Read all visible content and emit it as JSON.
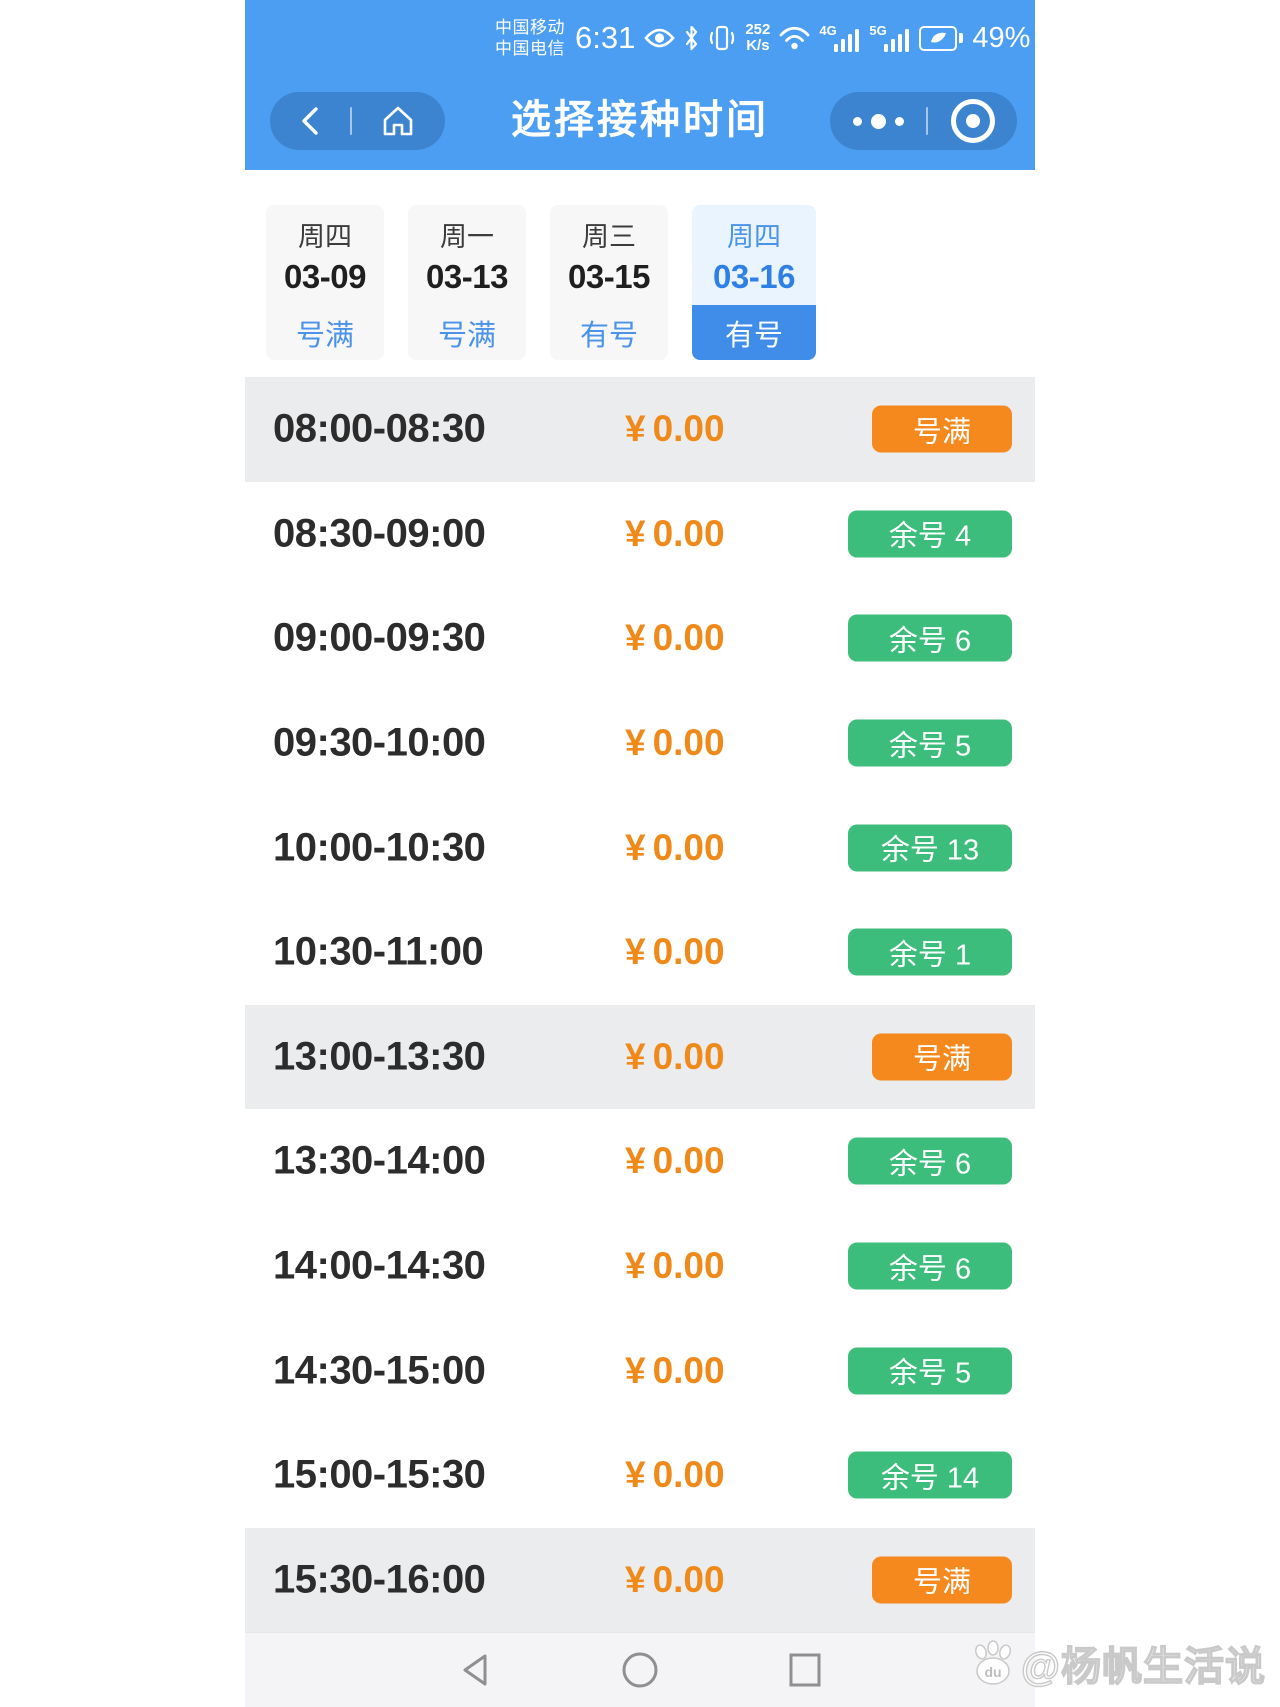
{
  "colors": {
    "header_blue": "#4b9ef2",
    "accent_blue": "#3f8ce9",
    "tab_text_blue": "#4a93e8",
    "orange": "#f6891e",
    "price_orange": "#ef8a1a",
    "green": "#3cbd7c",
    "row_gray": "#ebeced"
  },
  "status_bar": {
    "carrier_top": "中国移动",
    "carrier_bottom": "中国电信",
    "time": "6:31",
    "speed_value": "252",
    "speed_unit": "K/s",
    "network_badge_1": "4G",
    "network_badge_2": "5G",
    "battery_percent": "49%"
  },
  "nav": {
    "title": "选择接种时间"
  },
  "date_tabs": [
    {
      "weekday": "周四",
      "date": "03-09",
      "status": "号满",
      "selected": false
    },
    {
      "weekday": "周一",
      "date": "03-13",
      "status": "号满",
      "selected": false
    },
    {
      "weekday": "周三",
      "date": "03-15",
      "status": "有号",
      "selected": false
    },
    {
      "weekday": "周四",
      "date": "03-16",
      "status": "有号",
      "selected": true
    }
  ],
  "slots": [
    {
      "time": "08:00-08:30",
      "currency": "¥",
      "amount": "0.00",
      "status": "号满",
      "type": "full"
    },
    {
      "time": "08:30-09:00",
      "currency": "¥",
      "amount": "0.00",
      "status": "余号 4",
      "type": "available"
    },
    {
      "time": "09:00-09:30",
      "currency": "¥",
      "amount": "0.00",
      "status": "余号 6",
      "type": "available"
    },
    {
      "time": "09:30-10:00",
      "currency": "¥",
      "amount": "0.00",
      "status": "余号 5",
      "type": "available"
    },
    {
      "time": "10:00-10:30",
      "currency": "¥",
      "amount": "0.00",
      "status": "余号 13",
      "type": "available"
    },
    {
      "time": "10:30-11:00",
      "currency": "¥",
      "amount": "0.00",
      "status": "余号 1",
      "type": "available"
    },
    {
      "time": "13:00-13:30",
      "currency": "¥",
      "amount": "0.00",
      "status": "号满",
      "type": "full"
    },
    {
      "time": "13:30-14:00",
      "currency": "¥",
      "amount": "0.00",
      "status": "余号 6",
      "type": "available"
    },
    {
      "time": "14:00-14:30",
      "currency": "¥",
      "amount": "0.00",
      "status": "余号 6",
      "type": "available"
    },
    {
      "time": "14:30-15:00",
      "currency": "¥",
      "amount": "0.00",
      "status": "余号 5",
      "type": "available"
    },
    {
      "time": "15:00-15:30",
      "currency": "¥",
      "amount": "0.00",
      "status": "余号 14",
      "type": "available"
    },
    {
      "time": "15:30-16:00",
      "currency": "¥",
      "amount": "0.00",
      "status": "号满",
      "type": "full"
    }
  ],
  "watermark": {
    "badge_text": "du",
    "handle": "@杨帆生活说"
  }
}
